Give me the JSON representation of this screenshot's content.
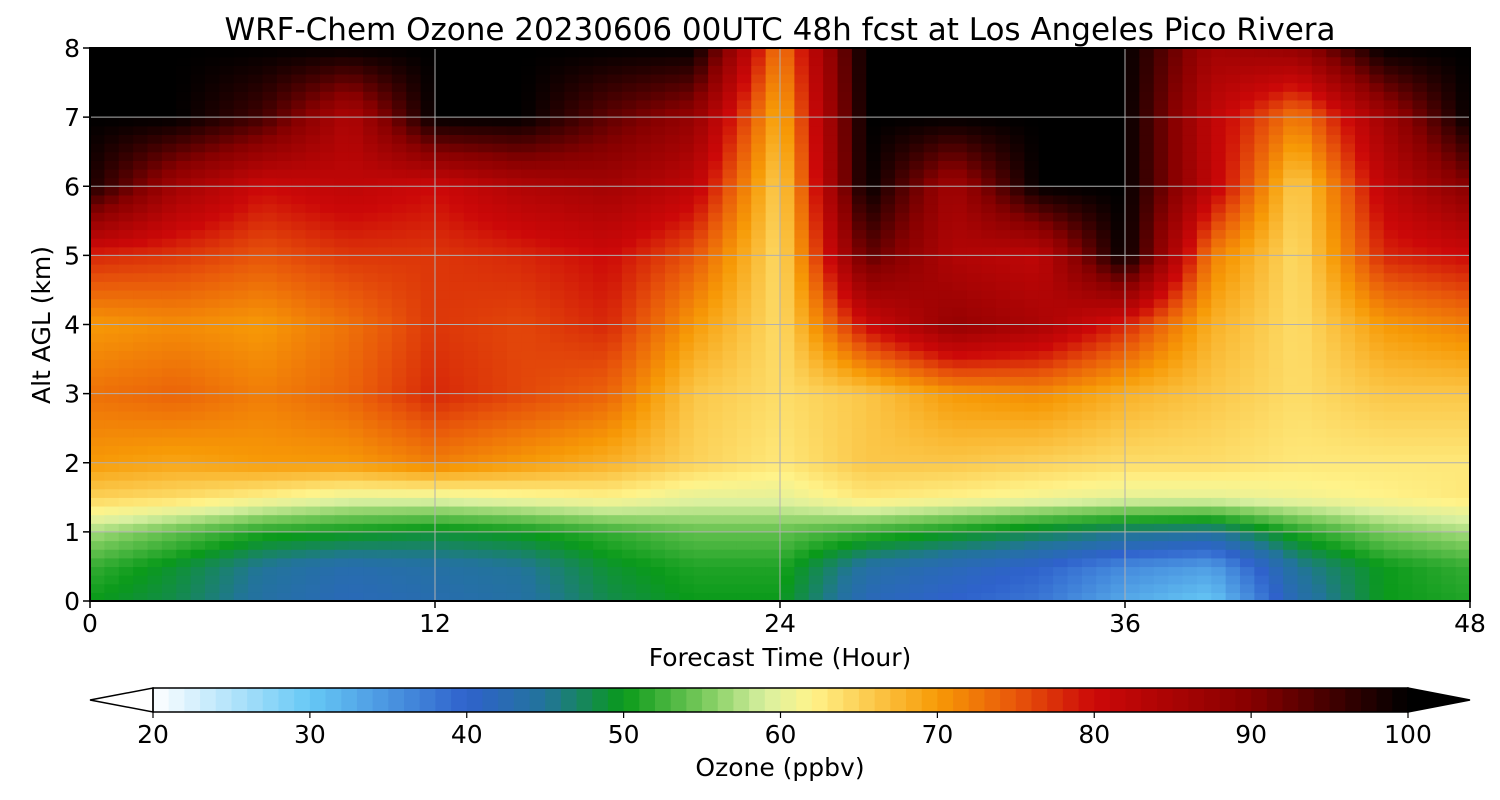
{
  "chart_data": {
    "type": "heatmap",
    "title": "WRF-Chem Ozone  20230606 00UTC 48h fcst at Los Angeles Pico Rivera",
    "xlabel": "Forecast Time (Hour)",
    "ylabel": "Alt AGL (km)",
    "xlim": [
      0,
      48
    ],
    "ylim": [
      0,
      8
    ],
    "xticks": [
      0,
      12,
      24,
      36,
      48
    ],
    "yticks": [
      0,
      1,
      2,
      3,
      4,
      5,
      6,
      7,
      8
    ],
    "grid": true,
    "colorbar": {
      "label": "Ozone  (ppbv)",
      "range": [
        20,
        100
      ],
      "ticks": [
        20,
        30,
        40,
        50,
        60,
        70,
        80,
        90,
        100
      ],
      "extend": "both",
      "stops": [
        {
          "v": 20,
          "c": "#ffffff"
        },
        {
          "v": 30,
          "c": "#66c8f5"
        },
        {
          "v": 40,
          "c": "#2f62cc"
        },
        {
          "v": 45,
          "c": "#22749a"
        },
        {
          "v": 50,
          "c": "#0a9a1a"
        },
        {
          "v": 55,
          "c": "#77c95a"
        },
        {
          "v": 59,
          "c": "#d8f0a0"
        },
        {
          "v": 62,
          "c": "#fff38a"
        },
        {
          "v": 70,
          "c": "#f79a06"
        },
        {
          "v": 75,
          "c": "#e8560a"
        },
        {
          "v": 80,
          "c": "#cc0808"
        },
        {
          "v": 90,
          "c": "#870000"
        },
        {
          "v": 100,
          "c": "#000000"
        }
      ]
    },
    "x": [
      0,
      3,
      6,
      9,
      12,
      15,
      18,
      21,
      24,
      27,
      30,
      33,
      36,
      39,
      42,
      45,
      48
    ],
    "y": [
      0,
      0.5,
      1,
      1.5,
      2,
      3,
      4,
      5,
      6,
      7,
      8
    ],
    "values": [
      [
        50,
        48,
        44,
        42,
        43,
        44,
        48,
        50,
        50,
        42,
        40,
        38,
        33,
        30,
        43,
        50,
        51
      ],
      [
        52,
        49,
        45,
        43,
        44,
        45,
        49,
        51,
        51,
        44,
        42,
        40,
        36,
        34,
        45,
        50,
        52
      ],
      [
        57,
        54,
        51,
        50,
        49,
        50,
        52,
        54,
        54,
        52,
        50,
        48,
        46,
        45,
        51,
        55,
        57
      ],
      [
        65,
        64,
        62,
        60,
        60,
        61,
        62,
        60,
        60,
        63,
        62,
        61,
        60,
        60,
        61,
        62,
        63
      ],
      [
        70,
        69,
        70,
        70,
        72,
        70,
        68,
        65,
        63,
        66,
        66,
        65,
        64,
        64,
        63,
        63,
        63
      ],
      [
        73,
        74,
        72,
        74,
        78,
        76,
        74,
        66,
        64,
        66,
        70,
        71,
        68,
        66,
        64,
        66,
        66
      ],
      [
        70,
        71,
        70,
        73,
        77,
        76,
        78,
        70,
        64,
        80,
        88,
        85,
        78,
        68,
        64,
        70,
        72
      ],
      [
        78,
        77,
        75,
        77,
        77,
        78,
        80,
        75,
        64,
        93,
        84,
        82,
        100,
        72,
        64,
        78,
        80
      ],
      [
        98,
        86,
        80,
        82,
        80,
        84,
        86,
        82,
        65,
        100,
        86,
        100,
        100,
        82,
        65,
        82,
        90
      ],
      [
        100,
        100,
        95,
        84,
        100,
        100,
        93,
        88,
        68,
        100,
        100,
        100,
        100,
        82,
        72,
        86,
        100
      ],
      [
        100,
        100,
        100,
        100,
        100,
        100,
        100,
        100,
        72,
        100,
        100,
        100,
        100,
        86,
        88,
        100,
        100
      ]
    ]
  }
}
